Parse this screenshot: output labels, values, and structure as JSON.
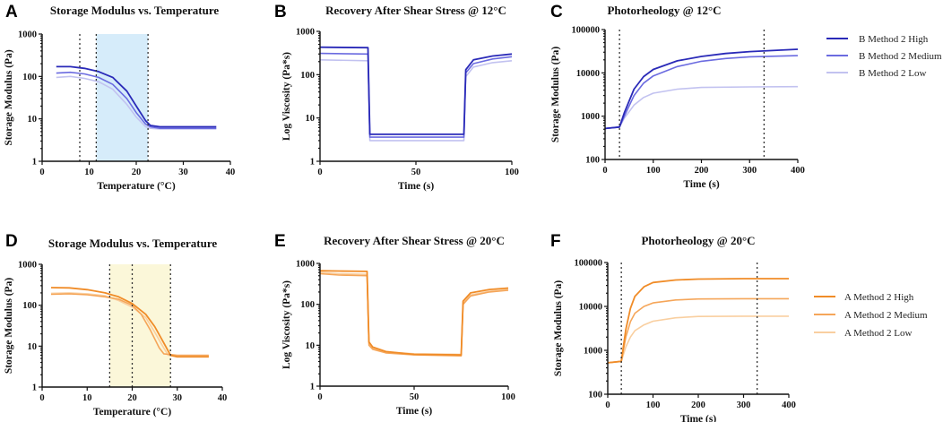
{
  "colors": {
    "b_high": "#2a2ab8",
    "b_medium": "#6b6be0",
    "b_low": "#c2c2f0",
    "a_high": "#f08c28",
    "a_medium": "#f5a65a",
    "a_low": "#f9cfa0",
    "blue_band": "#d6ecfa",
    "yellow_band": "#fbf7d9"
  },
  "legends": {
    "b": [
      "B Method 2 High",
      "B Method 2 Medium",
      "B Method 2 Low"
    ],
    "a": [
      "A Method 2 High",
      "A Method 2 Medium",
      "A Method 2 Low"
    ]
  },
  "chart_data": [
    {
      "panel": "A",
      "type": "line",
      "title": "Storage Modulus vs. Temperature",
      "xlabel": "Temperature (°C)",
      "ylabel": "Storage  Modulus  (Pa)",
      "xlim": [
        0,
        40
      ],
      "xticks": [
        0,
        10,
        20,
        30,
        40
      ],
      "xticklabels": [
        "0",
        "10",
        "20",
        "30",
        "40"
      ],
      "ylog": true,
      "ylim": [
        1,
        1000
      ],
      "yticks": [
        1,
        10,
        100,
        1000
      ],
      "yticklabels": [
        "1",
        "10",
        "100",
        "1000"
      ],
      "band": [
        11.5,
        22.5
      ],
      "vlines": [
        8,
        11.5,
        22.5
      ],
      "palette": "b",
      "series": [
        {
          "name": "B Method 2 High",
          "x": [
            3,
            6,
            9,
            12,
            15,
            18,
            20,
            22,
            23,
            25,
            30,
            37
          ],
          "y": [
            170,
            170,
            155,
            130,
            95,
            45,
            20,
            9,
            7,
            6.5,
            6.5,
            6.5
          ]
        },
        {
          "name": "B Method 2 Medium",
          "x": [
            3,
            6,
            9,
            12,
            15,
            18,
            20,
            22,
            23,
            25,
            30,
            37
          ],
          "y": [
            120,
            125,
            115,
            95,
            65,
            30,
            14,
            7.5,
            6.5,
            6,
            6,
            6
          ]
        },
        {
          "name": "B Method 2 Low",
          "x": [
            3,
            6,
            9,
            12,
            15,
            18,
            20,
            22,
            23,
            25,
            30,
            37
          ],
          "y": [
            95,
            100,
            90,
            75,
            50,
            22,
            11,
            6.5,
            6,
            5.8,
            5.8,
            5.8
          ]
        }
      ]
    },
    {
      "panel": "B",
      "type": "line",
      "title": "Recovery After Shear Stress @ 12°C",
      "xlabel": "Time (s)",
      "ylabel": "Log Viscosity (Pa*s)",
      "xlim": [
        0,
        100
      ],
      "xticks": [
        0,
        50,
        100
      ],
      "xticklabels": [
        "0",
        "50",
        "100"
      ],
      "ylog": true,
      "ylim": [
        1,
        1000
      ],
      "yticks": [
        1,
        10,
        100,
        1000
      ],
      "yticklabels": [
        "1",
        "10",
        "100",
        "1000"
      ],
      "palette": "b",
      "series": [
        {
          "name": "B Method 2 High",
          "x": [
            0,
            25,
            26,
            50,
            75,
            76,
            80,
            90,
            100
          ],
          "y": [
            430,
            420,
            4.2,
            4.2,
            4.2,
            130,
            220,
            270,
            300
          ]
        },
        {
          "name": "B Method 2 Medium",
          "x": [
            0,
            25,
            26,
            50,
            75,
            76,
            80,
            90,
            100
          ],
          "y": [
            310,
            300,
            3.6,
            3.6,
            3.6,
            110,
            180,
            230,
            260
          ]
        },
        {
          "name": "B Method 2 Low",
          "x": [
            0,
            25,
            26,
            50,
            75,
            76,
            80,
            90,
            100
          ],
          "y": [
            220,
            210,
            3.0,
            3.0,
            3.0,
            90,
            150,
            190,
            210
          ]
        }
      ]
    },
    {
      "panel": "C",
      "type": "line",
      "title": "Photorheology @ 12°C",
      "xlabel": "Time (s)",
      "ylabel": "Storage  Modulus  (Pa)",
      "xlim": [
        0,
        400
      ],
      "xticks": [
        0,
        100,
        200,
        300,
        400
      ],
      "xticklabels": [
        "0",
        "100",
        "200",
        "300",
        "400"
      ],
      "ylog": true,
      "ylim": [
        100,
        100000
      ],
      "yticks": [
        100,
        1000,
        10000,
        100000
      ],
      "yticklabels": [
        "100",
        "1000",
        "10000",
        "100000"
      ],
      "vlines": [
        30,
        330
      ],
      "palette": "b",
      "series": [
        {
          "name": "B Method 2 High",
          "x": [
            0,
            30,
            40,
            60,
            80,
            100,
            150,
            200,
            250,
            300,
            400
          ],
          "y": [
            520,
            560,
            1200,
            4200,
            8200,
            12000,
            19000,
            24000,
            28000,
            31000,
            35000
          ]
        },
        {
          "name": "B Method 2 Medium",
          "x": [
            0,
            30,
            40,
            60,
            80,
            100,
            150,
            200,
            250,
            300,
            400
          ],
          "y": [
            520,
            560,
            1000,
            3000,
            5800,
            8500,
            14000,
            18500,
            21500,
            23500,
            25000
          ]
        },
        {
          "name": "B Method 2 Low",
          "x": [
            0,
            30,
            40,
            60,
            80,
            100,
            150,
            200,
            300,
            400
          ],
          "y": [
            520,
            560,
            900,
            1800,
            2700,
            3400,
            4200,
            4600,
            4750,
            4800
          ]
        }
      ]
    },
    {
      "panel": "D",
      "type": "line",
      "title": "Storage Modulus vs. Temperature",
      "xlabel": "Temperature (°C)",
      "ylabel": "Storage  Modulus  (Pa)",
      "xlim": [
        0,
        40
      ],
      "xticks": [
        0,
        10,
        20,
        30,
        40
      ],
      "xticklabels": [
        "0",
        "10",
        "20",
        "30",
        "40"
      ],
      "ylog": true,
      "ylim": [
        1,
        1000
      ],
      "yticks": [
        1,
        10,
        100,
        1000
      ],
      "yticklabels": [
        "1",
        "10",
        "100",
        "1000"
      ],
      "band": [
        15,
        28.5
      ],
      "vlines": [
        15,
        20,
        28.5
      ],
      "palette": "a",
      "series": [
        {
          "name": "A Method 2 High",
          "x": [
            2,
            6,
            10,
            14,
            17,
            20,
            23,
            25,
            27,
            28.5,
            30,
            37
          ],
          "y": [
            270,
            265,
            240,
            200,
            160,
            110,
            60,
            30,
            12,
            6,
            5.5,
            5.5
          ]
        },
        {
          "name": "A Method 2 Medium",
          "x": [
            2,
            6,
            10,
            14,
            17,
            20,
            22,
            24,
            26,
            27,
            30,
            37
          ],
          "y": [
            185,
            190,
            180,
            160,
            140,
            100,
            60,
            25,
            9,
            6.5,
            6,
            6
          ]
        },
        {
          "name": "A Method 2 Low",
          "x": [
            2,
            6,
            10,
            14,
            17,
            20,
            23,
            25,
            27,
            28,
            30,
            37
          ],
          "y": [
            195,
            200,
            190,
            170,
            130,
            90,
            50,
            22,
            9,
            6,
            5.5,
            5.5
          ]
        }
      ]
    },
    {
      "panel": "E",
      "type": "line",
      "title": "Recovery After Shear Stress @ 20°C",
      "xlabel": "Time (s)",
      "ylabel": "Log Viscosity (Pa*s)",
      "xlim": [
        0,
        100
      ],
      "xticks": [
        0,
        50,
        100
      ],
      "xticklabels": [
        "0",
        "50",
        "100"
      ],
      "ylog": true,
      "ylim": [
        1,
        1000
      ],
      "yticks": [
        1,
        10,
        100,
        1000
      ],
      "yticklabels": [
        "1",
        "10",
        "100",
        "1000"
      ],
      "palette": "a",
      "series": [
        {
          "name": "A Method 2 High",
          "x": [
            0,
            10,
            25,
            26,
            28,
            35,
            50,
            75,
            76,
            80,
            90,
            100
          ],
          "y": [
            660,
            650,
            640,
            12,
            9,
            7,
            6,
            5.8,
            120,
            190,
            230,
            250
          ]
        },
        {
          "name": "A Method 2 Medium",
          "x": [
            0,
            10,
            25,
            26,
            28,
            35,
            50,
            75,
            76,
            80,
            90,
            100
          ],
          "y": [
            560,
            520,
            500,
            10,
            8,
            6.5,
            5.8,
            5.5,
            100,
            160,
            200,
            220
          ]
        },
        {
          "name": "A Method 2 Low",
          "x": [
            0,
            10,
            25,
            26,
            28,
            35,
            50,
            75,
            76,
            80,
            90,
            100
          ],
          "y": [
            600,
            560,
            540,
            11,
            8.5,
            6.8,
            6.2,
            6.0,
            110,
            170,
            210,
            230
          ]
        }
      ]
    },
    {
      "panel": "F",
      "type": "line",
      "title": "Photorheology @ 20°C",
      "xlabel": "Time (s)",
      "ylabel": "Storage  Modulus  (Pa)",
      "xlim": [
        0,
        400
      ],
      "xticks": [
        0,
        100,
        200,
        300,
        400
      ],
      "xticklabels": [
        "0",
        "100",
        "200",
        "300",
        "400"
      ],
      "ylog": true,
      "ylim": [
        100,
        100000
      ],
      "yticks": [
        100,
        1000,
        10000,
        100000
      ],
      "yticklabels": [
        "100",
        "1000",
        "10000",
        "100000"
      ],
      "vlines": [
        30,
        330
      ],
      "palette": "a",
      "series": [
        {
          "name": "A Method 2 High",
          "x": [
            0,
            30,
            40,
            50,
            60,
            80,
            100,
            150,
            200,
            300,
            400
          ],
          "y": [
            520,
            560,
            3000,
            9000,
            17000,
            28000,
            35000,
            40000,
            42000,
            43000,
            43000
          ]
        },
        {
          "name": "A Method 2 Medium",
          "x": [
            0,
            30,
            40,
            50,
            60,
            80,
            100,
            150,
            200,
            300,
            400
          ],
          "y": [
            520,
            560,
            2000,
            4500,
            7000,
            10000,
            12000,
            14000,
            14800,
            15000,
            15000
          ]
        },
        {
          "name": "A Method 2 Low",
          "x": [
            0,
            30,
            40,
            50,
            60,
            80,
            100,
            150,
            200,
            300,
            400
          ],
          "y": [
            520,
            560,
            1200,
            2000,
            2800,
            3800,
            4600,
            5500,
            5900,
            6000,
            6000
          ]
        }
      ]
    }
  ]
}
